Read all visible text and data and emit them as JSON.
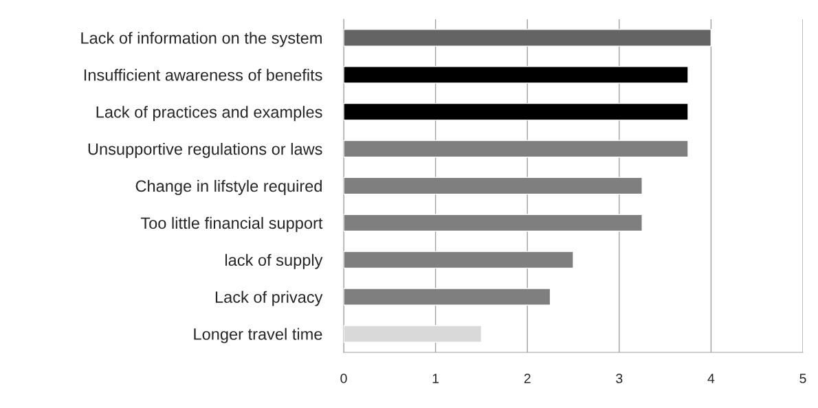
{
  "chart_data": {
    "type": "bar",
    "orientation": "horizontal",
    "categories": [
      "Lack of information on the system",
      "Insufficient awareness of benefits",
      "Lack of practices and examples",
      "Unsupportive regulations or laws",
      "Change in lifstyle required",
      "Too little financial support",
      "lack of supply",
      "Lack of privacy",
      "Longer travel time"
    ],
    "values": [
      4,
      3.75,
      3.75,
      3.75,
      3.25,
      3.25,
      2.5,
      2.25,
      1.5
    ],
    "colors": [
      "#646464",
      "#000000",
      "#000000",
      "#7f7f7f",
      "#7f7f7f",
      "#7f7f7f",
      "#7f7f7f",
      "#7f7f7f",
      "#d9d9d9"
    ],
    "xlim": [
      0,
      5
    ],
    "xticks": [
      0,
      1,
      2,
      3,
      4,
      5
    ],
    "grid": "x",
    "legend": false
  }
}
